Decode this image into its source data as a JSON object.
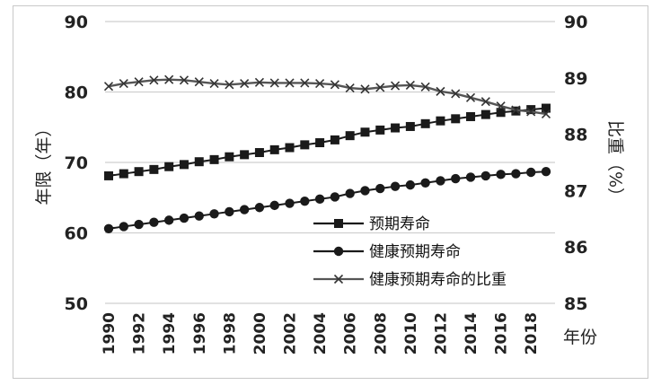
{
  "chart_data": {
    "type": "line",
    "x": [
      1990,
      1991,
      1992,
      1993,
      1994,
      1995,
      1996,
      1997,
      1998,
      1999,
      2000,
      2001,
      2002,
      2003,
      2004,
      2005,
      2006,
      2007,
      2008,
      2009,
      2010,
      2011,
      2012,
      2013,
      2014,
      2015,
      2016,
      2017,
      2018,
      2019
    ],
    "x_tick_labels": [
      "1990",
      "1992",
      "1994",
      "1996",
      "1998",
      "2000",
      "2002",
      "2004",
      "2006",
      "2008",
      "2010",
      "2012",
      "2014",
      "2016",
      "2018"
    ],
    "xlabel": "年份",
    "ylabel_left": "年限（年）",
    "ylabel_right": "比重（%）",
    "ylim_left": [
      50,
      90
    ],
    "ylim_right": [
      85,
      90
    ],
    "y_ticks_left": [
      "50",
      "60",
      "70",
      "80",
      "90"
    ],
    "y_ticks_right": [
      "85",
      "86",
      "87",
      "88",
      "89",
      "90"
    ],
    "grid": "horizontal",
    "legend_position": "lower-right",
    "series": [
      {
        "name": "预期寿命",
        "axis": "left",
        "marker": "square",
        "values": [
          68.1,
          68.4,
          68.7,
          69.0,
          69.4,
          69.7,
          70.1,
          70.4,
          70.8,
          71.1,
          71.4,
          71.8,
          72.1,
          72.5,
          72.8,
          73.2,
          73.8,
          74.3,
          74.6,
          74.9,
          75.1,
          75.5,
          75.9,
          76.2,
          76.5,
          76.8,
          77.1,
          77.3,
          77.5,
          77.7
        ]
      },
      {
        "name": "健康预期寿命",
        "axis": "left",
        "marker": "circle",
        "values": [
          60.6,
          60.9,
          61.2,
          61.5,
          61.8,
          62.1,
          62.4,
          62.7,
          63.0,
          63.3,
          63.6,
          63.9,
          64.2,
          64.5,
          64.8,
          65.1,
          65.6,
          66.0,
          66.3,
          66.6,
          66.8,
          67.1,
          67.4,
          67.7,
          67.9,
          68.1,
          68.3,
          68.4,
          68.6,
          68.7
        ]
      },
      {
        "name": "健康预期寿命的比重",
        "axis": "right",
        "marker": "x",
        "values": [
          88.85,
          88.9,
          88.93,
          88.96,
          88.97,
          88.96,
          88.93,
          88.9,
          88.88,
          88.9,
          88.92,
          88.91,
          88.91,
          88.91,
          88.9,
          88.88,
          88.82,
          88.8,
          88.83,
          88.86,
          88.87,
          88.84,
          88.76,
          88.72,
          88.65,
          88.58,
          88.5,
          88.43,
          88.4,
          88.36
        ]
      }
    ]
  }
}
